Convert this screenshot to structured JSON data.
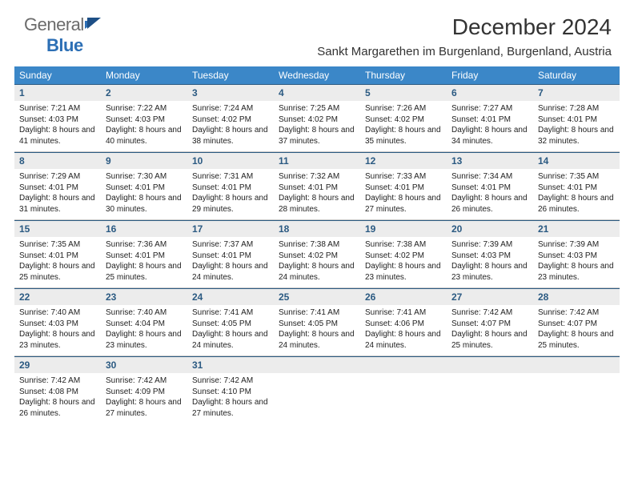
{
  "branding": {
    "logo_general": "General",
    "logo_blue": "Blue"
  },
  "header": {
    "month_title": "December 2024",
    "location": "Sankt Margarethen im Burgenland, Burgenland, Austria"
  },
  "colors": {
    "header_bar": "#3b87c8",
    "daynum_bg": "#ececec",
    "daynum_text": "#2b5a82",
    "rule": "#2b5a82",
    "body_text": "#222222",
    "background": "#ffffff"
  },
  "typography": {
    "month_title_fontsize": 28,
    "location_fontsize": 15,
    "weekday_fontsize": 12,
    "daynum_fontsize": 12,
    "detail_fontsize": 10
  },
  "weekdays": [
    "Sunday",
    "Monday",
    "Tuesday",
    "Wednesday",
    "Thursday",
    "Friday",
    "Saturday"
  ],
  "weeks": [
    {
      "days": [
        {
          "num": "1",
          "sunrise": "Sunrise: 7:21 AM",
          "sunset": "Sunset: 4:03 PM",
          "daylight": "Daylight: 8 hours and 41 minutes."
        },
        {
          "num": "2",
          "sunrise": "Sunrise: 7:22 AM",
          "sunset": "Sunset: 4:03 PM",
          "daylight": "Daylight: 8 hours and 40 minutes."
        },
        {
          "num": "3",
          "sunrise": "Sunrise: 7:24 AM",
          "sunset": "Sunset: 4:02 PM",
          "daylight": "Daylight: 8 hours and 38 minutes."
        },
        {
          "num": "4",
          "sunrise": "Sunrise: 7:25 AM",
          "sunset": "Sunset: 4:02 PM",
          "daylight": "Daylight: 8 hours and 37 minutes."
        },
        {
          "num": "5",
          "sunrise": "Sunrise: 7:26 AM",
          "sunset": "Sunset: 4:02 PM",
          "daylight": "Daylight: 8 hours and 35 minutes."
        },
        {
          "num": "6",
          "sunrise": "Sunrise: 7:27 AM",
          "sunset": "Sunset: 4:01 PM",
          "daylight": "Daylight: 8 hours and 34 minutes."
        },
        {
          "num": "7",
          "sunrise": "Sunrise: 7:28 AM",
          "sunset": "Sunset: 4:01 PM",
          "daylight": "Daylight: 8 hours and 32 minutes."
        }
      ]
    },
    {
      "days": [
        {
          "num": "8",
          "sunrise": "Sunrise: 7:29 AM",
          "sunset": "Sunset: 4:01 PM",
          "daylight": "Daylight: 8 hours and 31 minutes."
        },
        {
          "num": "9",
          "sunrise": "Sunrise: 7:30 AM",
          "sunset": "Sunset: 4:01 PM",
          "daylight": "Daylight: 8 hours and 30 minutes."
        },
        {
          "num": "10",
          "sunrise": "Sunrise: 7:31 AM",
          "sunset": "Sunset: 4:01 PM",
          "daylight": "Daylight: 8 hours and 29 minutes."
        },
        {
          "num": "11",
          "sunrise": "Sunrise: 7:32 AM",
          "sunset": "Sunset: 4:01 PM",
          "daylight": "Daylight: 8 hours and 28 minutes."
        },
        {
          "num": "12",
          "sunrise": "Sunrise: 7:33 AM",
          "sunset": "Sunset: 4:01 PM",
          "daylight": "Daylight: 8 hours and 27 minutes."
        },
        {
          "num": "13",
          "sunrise": "Sunrise: 7:34 AM",
          "sunset": "Sunset: 4:01 PM",
          "daylight": "Daylight: 8 hours and 26 minutes."
        },
        {
          "num": "14",
          "sunrise": "Sunrise: 7:35 AM",
          "sunset": "Sunset: 4:01 PM",
          "daylight": "Daylight: 8 hours and 26 minutes."
        }
      ]
    },
    {
      "days": [
        {
          "num": "15",
          "sunrise": "Sunrise: 7:35 AM",
          "sunset": "Sunset: 4:01 PM",
          "daylight": "Daylight: 8 hours and 25 minutes."
        },
        {
          "num": "16",
          "sunrise": "Sunrise: 7:36 AM",
          "sunset": "Sunset: 4:01 PM",
          "daylight": "Daylight: 8 hours and 25 minutes."
        },
        {
          "num": "17",
          "sunrise": "Sunrise: 7:37 AM",
          "sunset": "Sunset: 4:01 PM",
          "daylight": "Daylight: 8 hours and 24 minutes."
        },
        {
          "num": "18",
          "sunrise": "Sunrise: 7:38 AM",
          "sunset": "Sunset: 4:02 PM",
          "daylight": "Daylight: 8 hours and 24 minutes."
        },
        {
          "num": "19",
          "sunrise": "Sunrise: 7:38 AM",
          "sunset": "Sunset: 4:02 PM",
          "daylight": "Daylight: 8 hours and 23 minutes."
        },
        {
          "num": "20",
          "sunrise": "Sunrise: 7:39 AM",
          "sunset": "Sunset: 4:03 PM",
          "daylight": "Daylight: 8 hours and 23 minutes."
        },
        {
          "num": "21",
          "sunrise": "Sunrise: 7:39 AM",
          "sunset": "Sunset: 4:03 PM",
          "daylight": "Daylight: 8 hours and 23 minutes."
        }
      ]
    },
    {
      "days": [
        {
          "num": "22",
          "sunrise": "Sunrise: 7:40 AM",
          "sunset": "Sunset: 4:03 PM",
          "daylight": "Daylight: 8 hours and 23 minutes."
        },
        {
          "num": "23",
          "sunrise": "Sunrise: 7:40 AM",
          "sunset": "Sunset: 4:04 PM",
          "daylight": "Daylight: 8 hours and 23 minutes."
        },
        {
          "num": "24",
          "sunrise": "Sunrise: 7:41 AM",
          "sunset": "Sunset: 4:05 PM",
          "daylight": "Daylight: 8 hours and 24 minutes."
        },
        {
          "num": "25",
          "sunrise": "Sunrise: 7:41 AM",
          "sunset": "Sunset: 4:05 PM",
          "daylight": "Daylight: 8 hours and 24 minutes."
        },
        {
          "num": "26",
          "sunrise": "Sunrise: 7:41 AM",
          "sunset": "Sunset: 4:06 PM",
          "daylight": "Daylight: 8 hours and 24 minutes."
        },
        {
          "num": "27",
          "sunrise": "Sunrise: 7:42 AM",
          "sunset": "Sunset: 4:07 PM",
          "daylight": "Daylight: 8 hours and 25 minutes."
        },
        {
          "num": "28",
          "sunrise": "Sunrise: 7:42 AM",
          "sunset": "Sunset: 4:07 PM",
          "daylight": "Daylight: 8 hours and 25 minutes."
        }
      ]
    },
    {
      "days": [
        {
          "num": "29",
          "sunrise": "Sunrise: 7:42 AM",
          "sunset": "Sunset: 4:08 PM",
          "daylight": "Daylight: 8 hours and 26 minutes."
        },
        {
          "num": "30",
          "sunrise": "Sunrise: 7:42 AM",
          "sunset": "Sunset: 4:09 PM",
          "daylight": "Daylight: 8 hours and 27 minutes."
        },
        {
          "num": "31",
          "sunrise": "Sunrise: 7:42 AM",
          "sunset": "Sunset: 4:10 PM",
          "daylight": "Daylight: 8 hours and 27 minutes."
        },
        {
          "num": "",
          "sunrise": "",
          "sunset": "",
          "daylight": ""
        },
        {
          "num": "",
          "sunrise": "",
          "sunset": "",
          "daylight": ""
        },
        {
          "num": "",
          "sunrise": "",
          "sunset": "",
          "daylight": ""
        },
        {
          "num": "",
          "sunrise": "",
          "sunset": "",
          "daylight": ""
        }
      ]
    }
  ]
}
